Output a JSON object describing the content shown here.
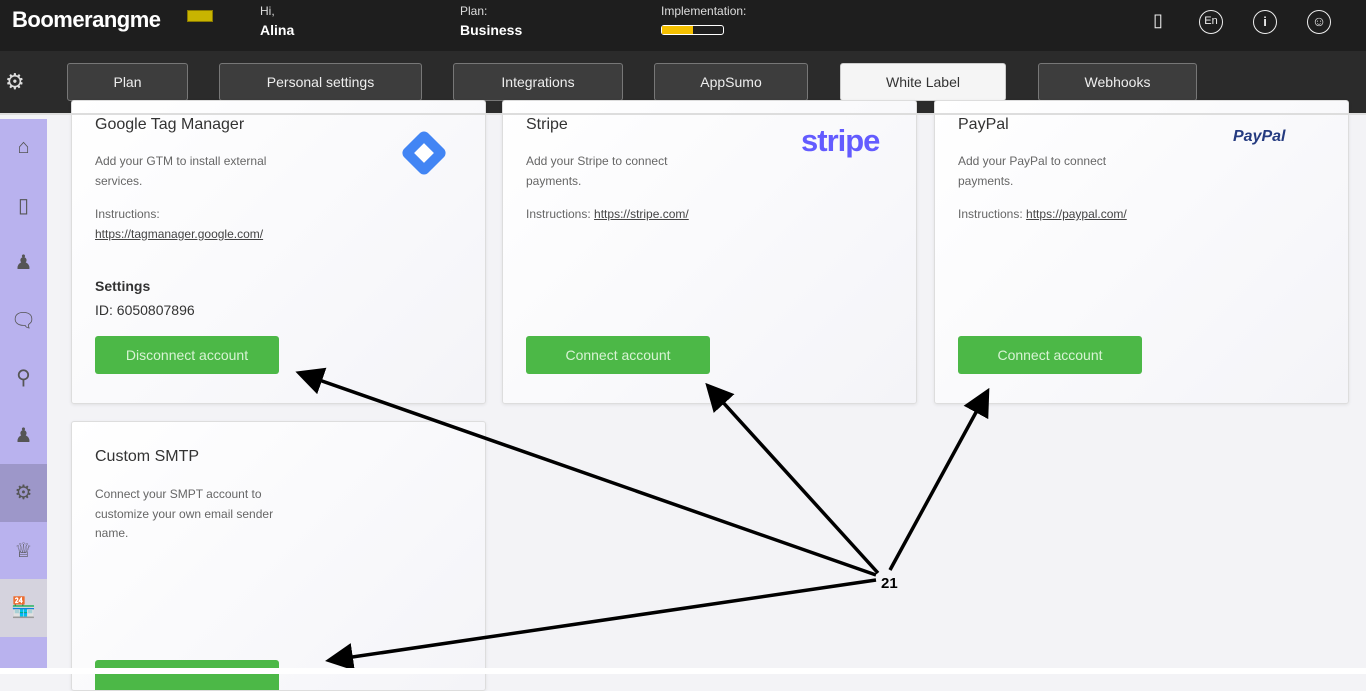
{
  "header": {
    "logo": "Boomerangme",
    "greeting_label": "Hi,",
    "user_name": "Alina",
    "plan_label": "Plan:",
    "plan_value": "Business",
    "implementation_label": "Implementation:",
    "implementation_progress": 0.5,
    "language": "En",
    "info": "i"
  },
  "tabs": [
    {
      "label": "Plan"
    },
    {
      "label": "Personal settings"
    },
    {
      "label": "Integrations"
    },
    {
      "label": "AppSumo"
    },
    {
      "label": "White Label",
      "active": true
    },
    {
      "label": "Webhooks"
    }
  ],
  "sidebar": {
    "items": [
      "home",
      "mobile-card",
      "customers",
      "chat",
      "location",
      "user",
      "settings",
      "crown",
      "shop"
    ],
    "active": "settings",
    "color": "#b9b2ee"
  },
  "cards": [
    {
      "title": "Google Tag Manager",
      "description": "Add your GTM to install external services.",
      "instructions_label": "Instructions:",
      "instructions_link": "https://tagmanager.google.com/",
      "settings_title": "Settings",
      "settings_id": "ID: 6050807896",
      "button": "Disconnect account"
    },
    {
      "title": "Stripe",
      "logo": "stripe",
      "description": "Add your Stripe to connect payments.",
      "instructions_label": "Instructions:",
      "instructions_link": "https://stripe.com/",
      "button": "Connect account"
    },
    {
      "title": "PayPal",
      "logo": "PayPal",
      "description": "Add your PayPal to connect payments.",
      "instructions_label": "Instructions:",
      "instructions_link": "https://paypal.com/",
      "button": "Connect account"
    },
    {
      "title": "Custom SMTP",
      "description": "Connect your SMPT account to customize your own email sender name."
    }
  ],
  "annotation": {
    "label": "21"
  },
  "colors": {
    "button_green": "#4cb847",
    "header": "#1e1e1e",
    "progress": "#f5c000"
  }
}
